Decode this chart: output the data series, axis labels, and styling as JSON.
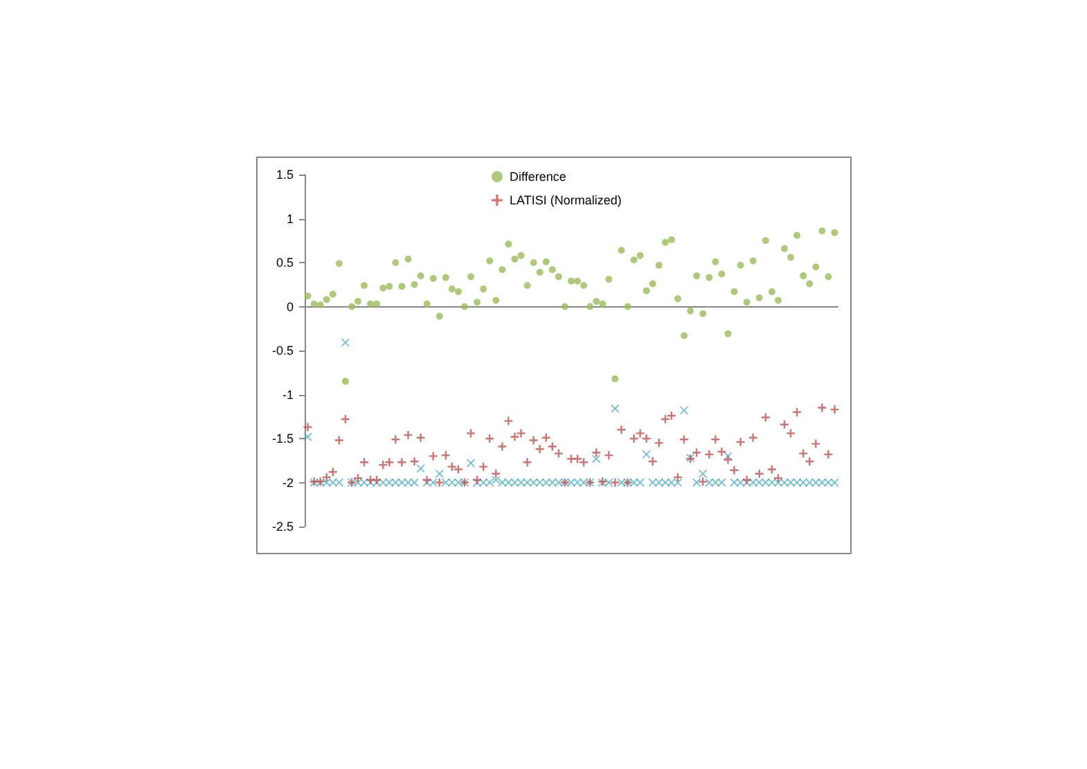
{
  "chart_data": {
    "type": "scatter",
    "categories": [
      null,
      null,
      null,
      null,
      null,
      null,
      null,
      null,
      null,
      null,
      null,
      null,
      null,
      null,
      null,
      null,
      null,
      null,
      null,
      null,
      null,
      null,
      null,
      null,
      null,
      null,
      null,
      null,
      null,
      null,
      null,
      null,
      null,
      null,
      null,
      null,
      null,
      null,
      null,
      null,
      null,
      null,
      null,
      null,
      null,
      null,
      null,
      null,
      null,
      null,
      null,
      null,
      null,
      null,
      null,
      null,
      null,
      null,
      null,
      null,
      null,
      null,
      null,
      null,
      null,
      null,
      null,
      null,
      null,
      null,
      null,
      null,
      null,
      null,
      null,
      null,
      null,
      null,
      null,
      null,
      null,
      null,
      null,
      null,
      null
    ],
    "series": [
      {
        "name": "Difference",
        "color": "#9bbb59",
        "marker": "circle",
        "values": [
          0.12,
          0.03,
          0.02,
          0.08,
          0.14,
          0.49,
          -0.85,
          0.0,
          0.06,
          0.24,
          0.03,
          0.03,
          0.21,
          0.23,
          0.5,
          0.23,
          0.54,
          0.25,
          0.35,
          0.03,
          0.32,
          -0.11,
          0.33,
          0.2,
          0.17,
          0.0,
          0.34,
          0.05,
          0.2,
          0.52,
          0.07,
          0.42,
          0.71,
          0.54,
          0.58,
          0.24,
          0.5,
          0.39,
          0.51,
          0.42,
          0.34,
          0.0,
          0.29,
          0.29,
          0.24,
          0.0,
          0.06,
          0.03,
          0.31,
          -0.82,
          0.64,
          0.0,
          0.53,
          0.58,
          0.18,
          0.26,
          0.47,
          0.73,
          0.76,
          0.09,
          -0.33,
          -0.05,
          0.35,
          -0.08,
          0.33,
          0.51,
          0.37,
          -0.31,
          0.17,
          0.47,
          0.05,
          0.52,
          0.1,
          0.75,
          0.17,
          0.07,
          0.66,
          0.56,
          0.81,
          0.35,
          0.26,
          0.45,
          0.86,
          0.34,
          0.84
        ]
      },
      {
        "color": "#4bacc6",
        "marker": "x",
        "values": [
          -1.48,
          -2,
          -2,
          -2,
          -2,
          -2,
          -0.41,
          -2,
          -2,
          -2,
          -2,
          -2,
          -2,
          -2,
          -2,
          -2,
          -2,
          -2,
          -1.84,
          -2,
          -2,
          -1.9,
          -2,
          -2,
          -2,
          -2,
          -1.78,
          -2,
          -2,
          -2,
          -1.97,
          -2,
          -2,
          -2,
          -2,
          -2,
          -2,
          -2,
          -2,
          -2,
          -2,
          -2,
          -2,
          -2,
          -2,
          -2,
          -1.73,
          -2,
          -2,
          -1.16,
          -2,
          -2,
          -2,
          -2,
          -1.68,
          -2,
          -2,
          -2,
          -2,
          -2,
          -1.18,
          -1.72,
          -2,
          -1.9,
          -2,
          -2,
          -2,
          -1.7,
          -2,
          -2,
          -2,
          -2,
          -2,
          -2,
          -2,
          -2,
          -2,
          -2,
          -2,
          -2,
          -2,
          -2,
          -2,
          -2,
          -2
        ]
      },
      {
        "name": "LATISI (Normalized)",
        "color": "#c0504d",
        "marker": "cross",
        "values": [
          -1.37,
          -1.99,
          -1.99,
          -1.94,
          -1.88,
          -1.52,
          -1.28,
          -2,
          -1.95,
          -1.77,
          -1.97,
          -1.97,
          -1.8,
          -1.77,
          -1.51,
          -1.77,
          -1.46,
          -1.76,
          -1.49,
          -1.97,
          -1.7,
          -2,
          -1.69,
          -1.82,
          -1.85,
          -2,
          -1.44,
          -1.97,
          -1.82,
          -1.5,
          -1.9,
          -1.59,
          -1.3,
          -1.48,
          -1.44,
          -1.77,
          -1.52,
          -1.62,
          -1.49,
          -1.59,
          -1.67,
          -2,
          -1.73,
          -1.73,
          -1.77,
          -2,
          -1.66,
          -1.99,
          -1.69,
          -2,
          -1.4,
          -2,
          -1.5,
          -1.44,
          -1.5,
          -1.76,
          -1.55,
          -1.28,
          -1.24,
          -1.94,
          -1.51,
          -1.73,
          -1.66,
          -1.99,
          -1.68,
          -1.51,
          -1.65,
          -1.74,
          -1.86,
          -1.54,
          -1.97,
          -1.49,
          -1.9,
          -1.26,
          -1.85,
          -1.95,
          -1.34,
          -1.44,
          -1.2,
          -1.67,
          -1.76,
          -1.56,
          -1.15,
          -1.68,
          -1.17
        ]
      }
    ],
    "ylim": [
      -2.5,
      1.5
    ],
    "yticks": [
      -2.5,
      -2,
      -1.5,
      -1,
      -0.5,
      0,
      0.5,
      1,
      1.5
    ],
    "legend": "top",
    "tick_labels": "y"
  }
}
